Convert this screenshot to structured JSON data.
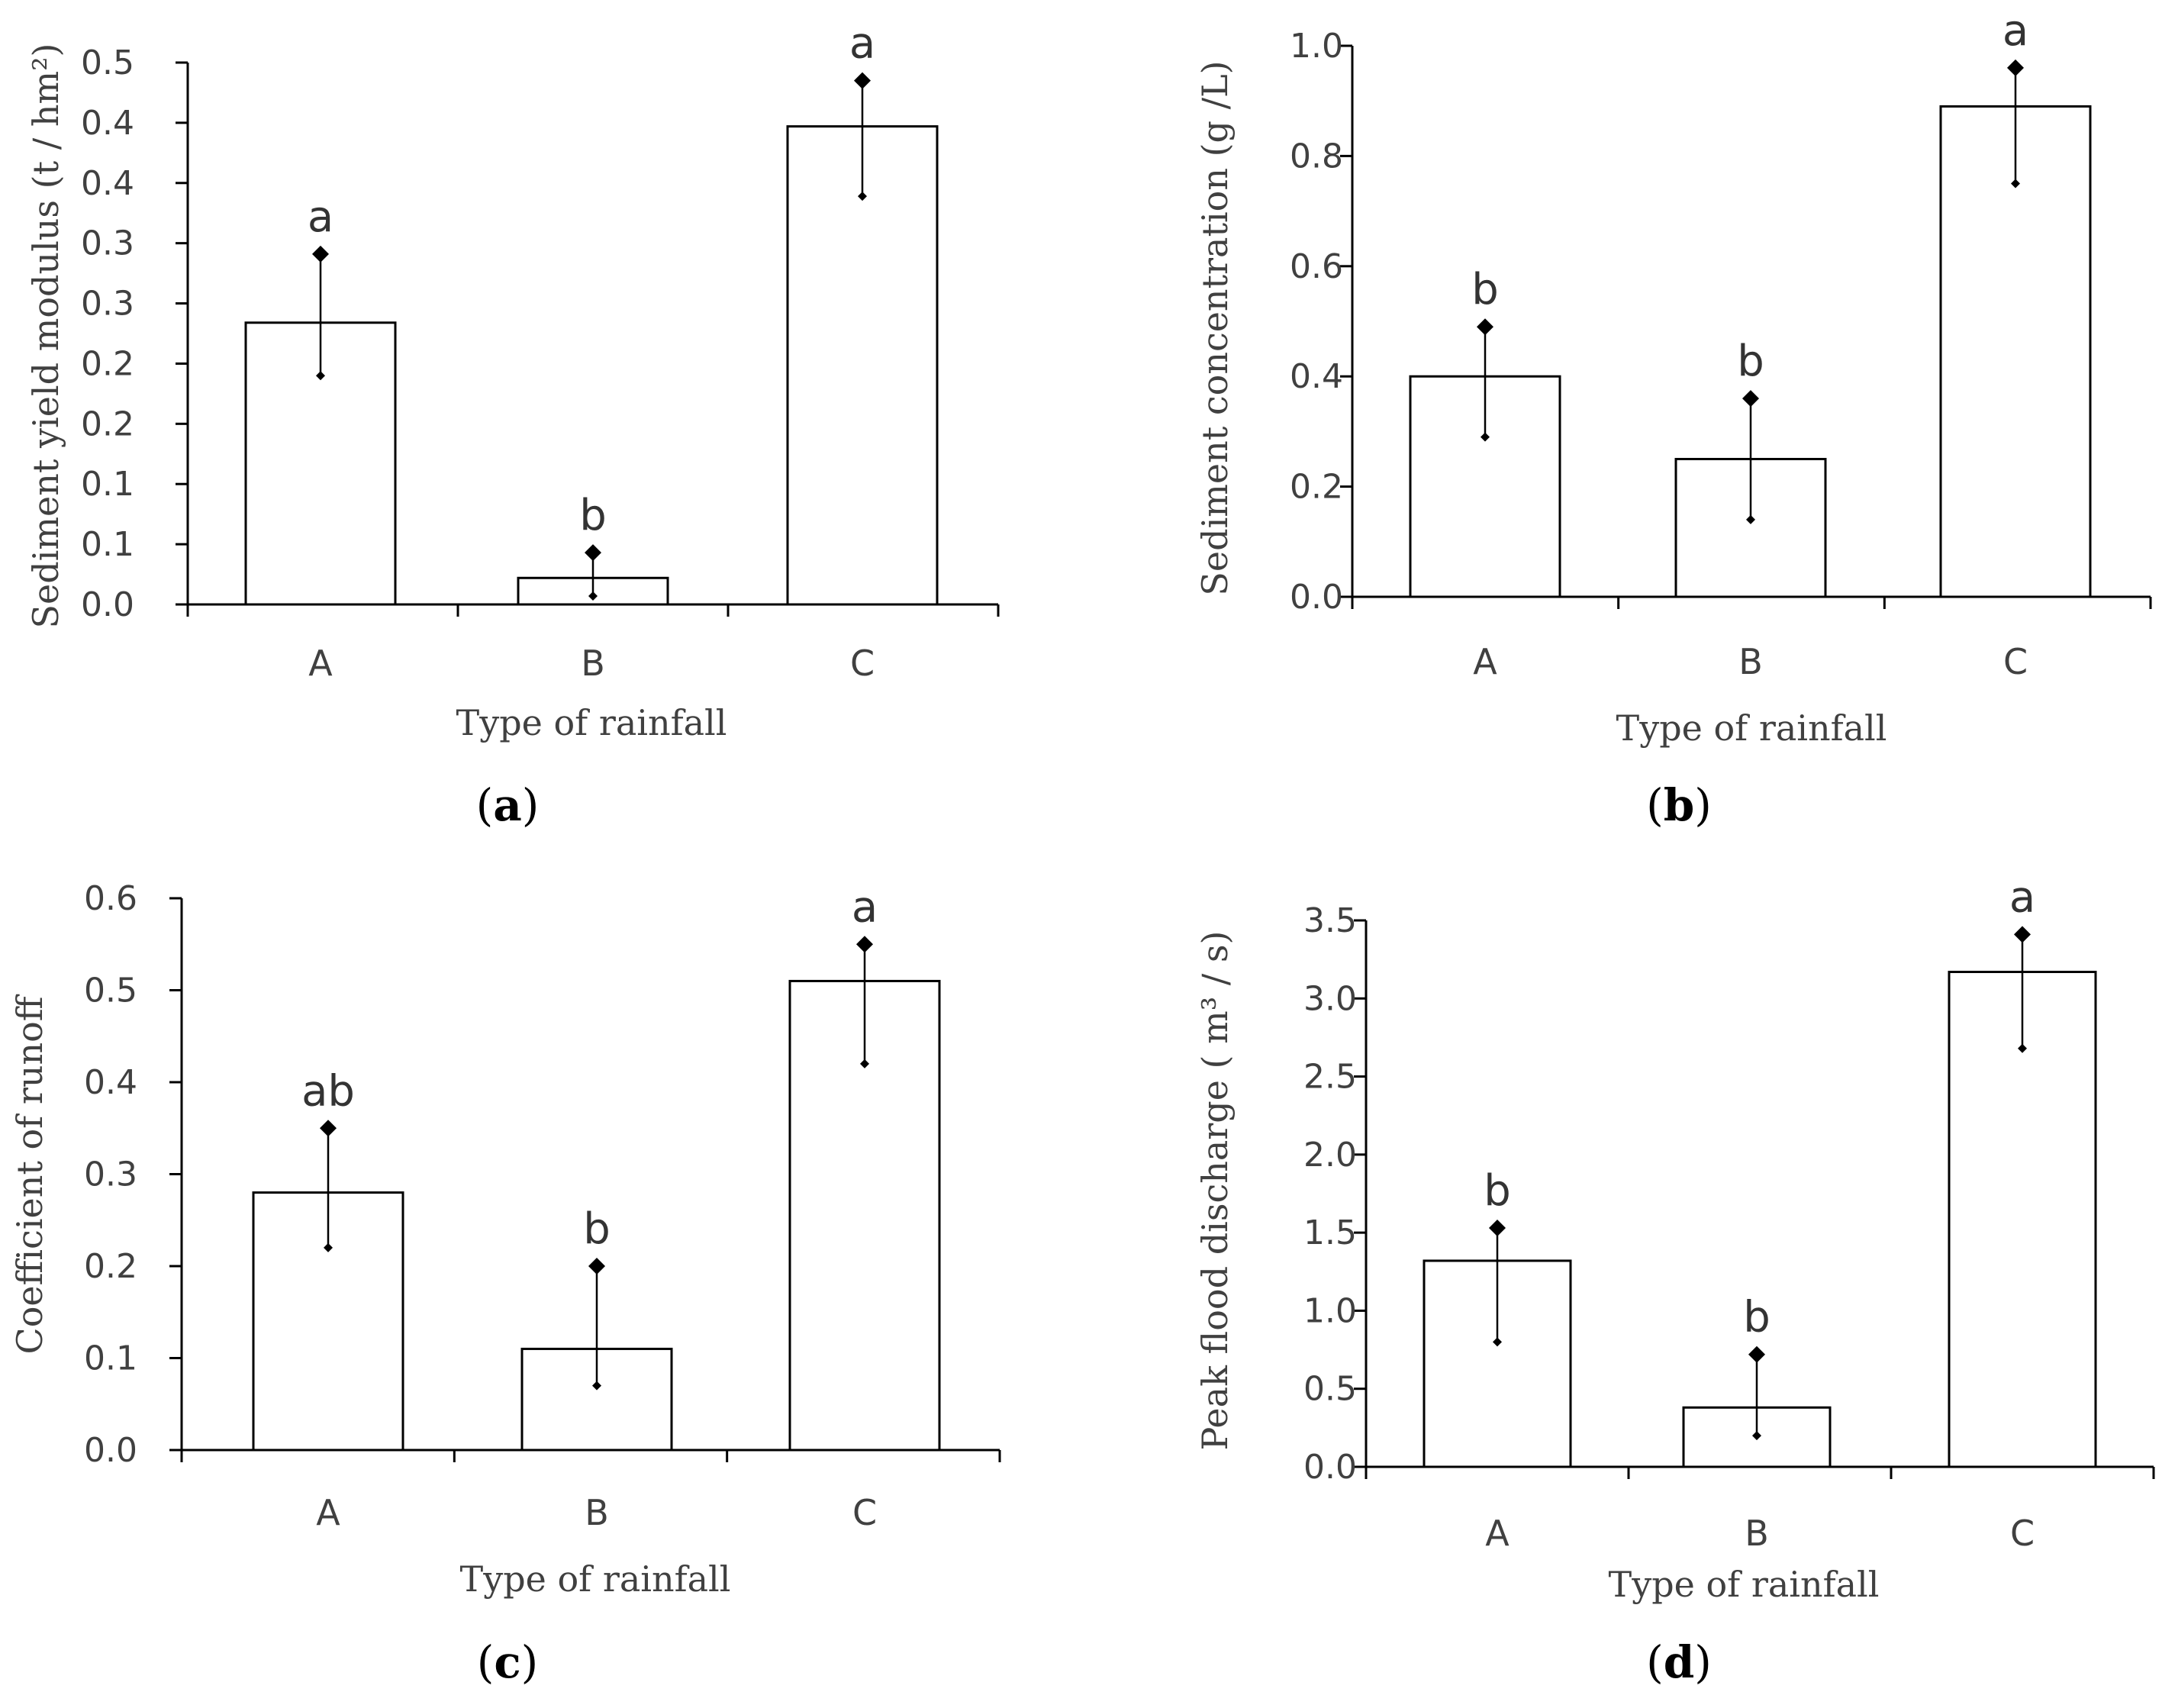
{
  "figure": {
    "colors": {
      "bar_fill": "#ffffff",
      "bar_stroke": "#000000",
      "axis": "#000000",
      "text": "#404040"
    }
  },
  "chart_data": [
    {
      "type": "bar",
      "panel": "a",
      "title": "",
      "xlabel": "Type of rainfall",
      "ylabel": "Sediment yield modulus (t / hm²)",
      "ylim": [
        0,
        0.45
      ],
      "yticks": [
        0,
        0.05,
        0.1,
        0.15,
        0.2,
        0.25,
        0.3,
        0.35,
        0.4,
        0.45
      ],
      "ytick_labels": [
        "0.0",
        "0.1",
        "0.1",
        "0.2",
        "0.2",
        "0.3",
        "0.3",
        "0.4",
        "0.4",
        "0.5"
      ],
      "categories": [
        "A",
        "B",
        "C"
      ],
      "values": [
        0.234,
        0.022,
        0.397
      ],
      "error_upper": [
        0.291,
        0.043,
        0.435
      ],
      "error_lower": [
        0.19,
        0.007,
        0.339
      ],
      "significance": [
        "a",
        "b",
        "a"
      ]
    },
    {
      "type": "bar",
      "panel": "b",
      "title": "",
      "xlabel": "Type of rainfall",
      "ylabel": "Sediment concentration (g /L)",
      "ylim": [
        0,
        1.0
      ],
      "yticks": [
        0,
        0.2,
        0.4,
        0.6,
        0.8,
        1.0
      ],
      "ytick_labels": [
        "0.0",
        "0.2",
        "0.4",
        "0.6",
        "0.8",
        "1.0"
      ],
      "categories": [
        "A",
        "B",
        "C"
      ],
      "values": [
        0.4,
        0.25,
        0.89
      ],
      "error_upper": [
        0.49,
        0.36,
        0.96
      ],
      "error_lower": [
        0.29,
        0.14,
        0.75
      ],
      "significance": [
        "b",
        "b",
        "a"
      ]
    },
    {
      "type": "bar",
      "panel": "c",
      "title": "",
      "xlabel": "Type of rainfall",
      "ylabel": "Coefficient of runoff",
      "ylim": [
        0,
        0.6
      ],
      "yticks": [
        0,
        0.1,
        0.2,
        0.3,
        0.4,
        0.5,
        0.6
      ],
      "ytick_labels": [
        "0.0",
        "0.1",
        "0.2",
        "0.3",
        "0.4",
        "0.5",
        "0.6"
      ],
      "categories": [
        "A",
        "B",
        "C"
      ],
      "values": [
        0.28,
        0.11,
        0.51
      ],
      "error_upper": [
        0.35,
        0.2,
        0.55
      ],
      "error_lower": [
        0.22,
        0.07,
        0.42
      ],
      "significance": [
        "ab",
        "b",
        "a"
      ]
    },
    {
      "type": "bar",
      "panel": "d",
      "title": "",
      "xlabel": "Type of rainfall",
      "ylabel": "Peak flood discharge ( m³ / s)",
      "ylim": [
        0,
        3.5
      ],
      "yticks": [
        0,
        0.5,
        1.0,
        1.5,
        2.0,
        2.5,
        3.0,
        3.5
      ],
      "ytick_labels": [
        "0.0",
        "0.5",
        "1.0",
        "1.5",
        "2.0",
        "2.5",
        "3.0",
        "3.5"
      ],
      "categories": [
        "A",
        "B",
        "C"
      ],
      "values": [
        1.32,
        0.38,
        3.17
      ],
      "error_upper": [
        1.53,
        0.72,
        3.41
      ],
      "error_lower": [
        0.8,
        0.2,
        2.68
      ],
      "significance": [
        "b",
        "b",
        "a"
      ]
    }
  ]
}
